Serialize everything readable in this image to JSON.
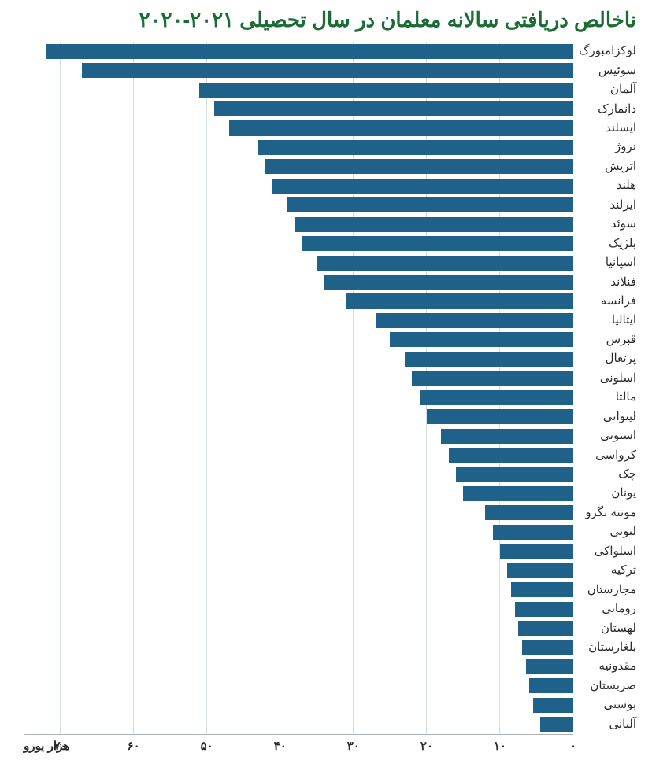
{
  "title": "ناخالص دریافتی سالانه معلمان در سال تحصیلی ۲۰۲۱-۲۰۲۰",
  "chart": {
    "type": "bar",
    "bar_color": "#1f6189",
    "grid_color": "#d7dee2",
    "background_color": "#ffffff",
    "title_color": "#1b6b37",
    "title_fontsize": 26,
    "label_fontsize": 15,
    "tick_fontsize": 15,
    "bar_height_ratio": 0.78,
    "x_axis": {
      "min": 0,
      "max": 75,
      "tick_step": 10,
      "unit_label": "هزار یورو",
      "tick_labels": [
        "۰",
        "۱۰",
        "۲۰",
        "۳۰",
        "۴۰",
        "۵۰",
        "۶۰",
        "۷۰"
      ]
    },
    "countries": [
      {
        "label": "لوکزامبورگ",
        "value": 72
      },
      {
        "label": "سوئیس",
        "value": 67
      },
      {
        "label": "آلمان",
        "value": 51
      },
      {
        "label": "دانمارک",
        "value": 49
      },
      {
        "label": "ایسلند",
        "value": 47
      },
      {
        "label": "نروژ",
        "value": 43
      },
      {
        "label": "اتریش",
        "value": 42
      },
      {
        "label": "هلند",
        "value": 41
      },
      {
        "label": "ایرلند",
        "value": 39
      },
      {
        "label": "سوئد",
        "value": 38
      },
      {
        "label": "بلژیک",
        "value": 37
      },
      {
        "label": "اسپانیا",
        "value": 35
      },
      {
        "label": "فنلاند",
        "value": 34
      },
      {
        "label": "فرانسه",
        "value": 31
      },
      {
        "label": "ایتالیا",
        "value": 27
      },
      {
        "label": "قبرس",
        "value": 25
      },
      {
        "label": "پرتغال",
        "value": 23
      },
      {
        "label": "اسلونی",
        "value": 22
      },
      {
        "label": "مالتا",
        "value": 21
      },
      {
        "label": "لیتوانی",
        "value": 20
      },
      {
        "label": "استونی",
        "value": 18
      },
      {
        "label": "کرواسی",
        "value": 17
      },
      {
        "label": "چک",
        "value": 16
      },
      {
        "label": "یونان",
        "value": 15
      },
      {
        "label": "مونته نگرو",
        "value": 12
      },
      {
        "label": "لتونی",
        "value": 11
      },
      {
        "label": "اسلواکی",
        "value": 10
      },
      {
        "label": "ترکیه",
        "value": 9
      },
      {
        "label": "مجارستان",
        "value": 8.5
      },
      {
        "label": "رومانی",
        "value": 8
      },
      {
        "label": "لهستان",
        "value": 7.5
      },
      {
        "label": "بلغارستان",
        "value": 7
      },
      {
        "label": "مقدونیه",
        "value": 6.5
      },
      {
        "label": "صربستان",
        "value": 6
      },
      {
        "label": "بوسنی",
        "value": 5.5
      },
      {
        "label": "آلبانی",
        "value": 4.5
      }
    ]
  }
}
